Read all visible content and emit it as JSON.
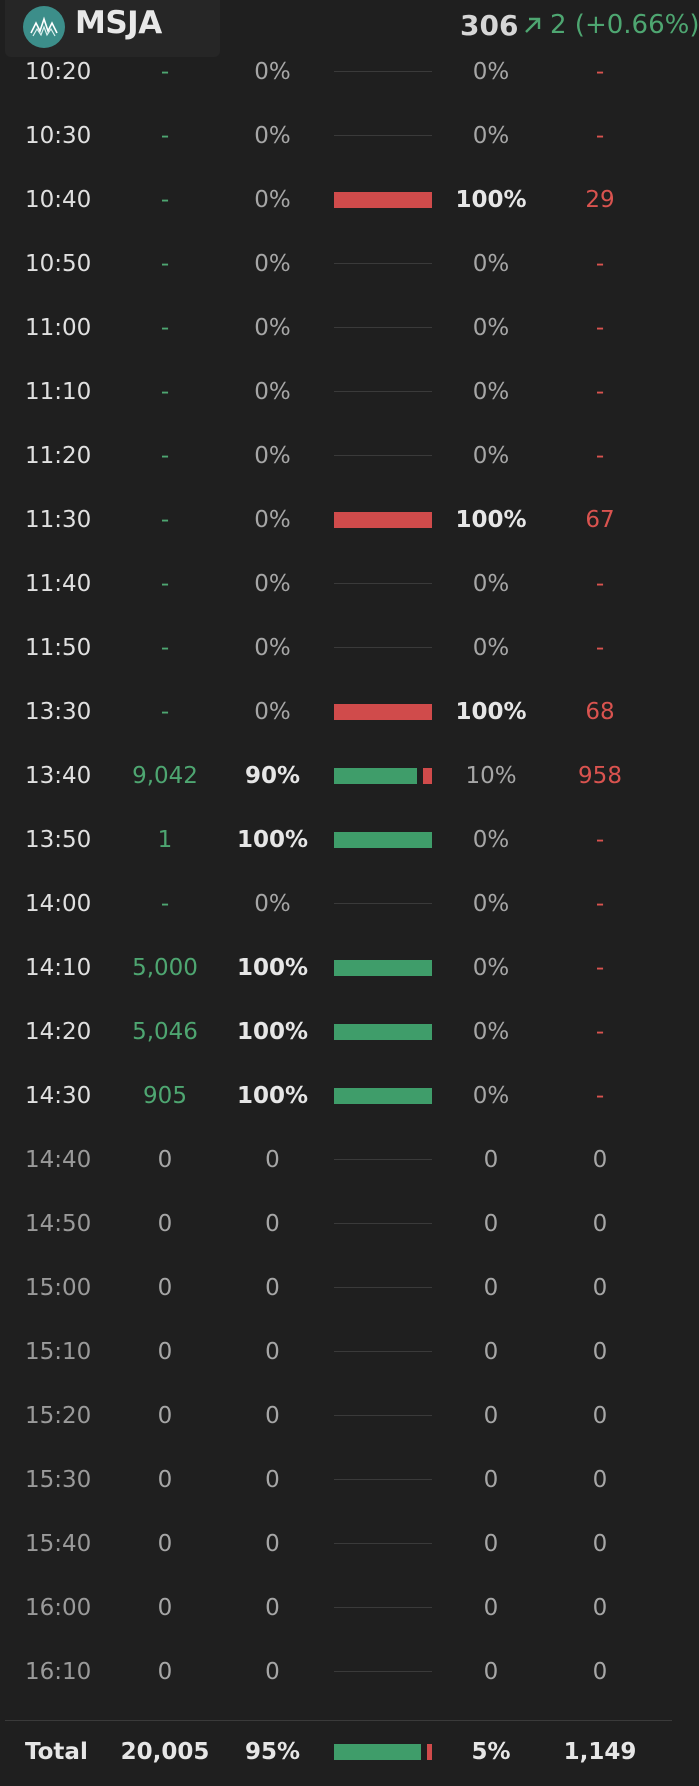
{
  "header": {
    "ticker": "MSJA",
    "price": "306",
    "change": "2 (+0.66%)",
    "icons": {
      "logo": "msja-logo-icon",
      "trend": "arrow-up-right-icon"
    },
    "colors": {
      "up": "#4ea671",
      "down": "#d9534f",
      "logo": "#3c8e8a"
    }
  },
  "rows": [
    {
      "time": "10:20",
      "buy_volume": "-",
      "buy_pct": "0%",
      "sell_pct": "0%",
      "sell_volume": "-",
      "buy_ratio": 0,
      "sell_ratio": 0,
      "future": false
    },
    {
      "time": "10:30",
      "buy_volume": "-",
      "buy_pct": "0%",
      "sell_pct": "0%",
      "sell_volume": "-",
      "buy_ratio": 0,
      "sell_ratio": 0,
      "future": false
    },
    {
      "time": "10:40",
      "buy_volume": "-",
      "buy_pct": "0%",
      "sell_pct": "100%",
      "sell_volume": "29",
      "buy_ratio": 0,
      "sell_ratio": 1,
      "future": false
    },
    {
      "time": "10:50",
      "buy_volume": "-",
      "buy_pct": "0%",
      "sell_pct": "0%",
      "sell_volume": "-",
      "buy_ratio": 0,
      "sell_ratio": 0,
      "future": false
    },
    {
      "time": "11:00",
      "buy_volume": "-",
      "buy_pct": "0%",
      "sell_pct": "0%",
      "sell_volume": "-",
      "buy_ratio": 0,
      "sell_ratio": 0,
      "future": false
    },
    {
      "time": "11:10",
      "buy_volume": "-",
      "buy_pct": "0%",
      "sell_pct": "0%",
      "sell_volume": "-",
      "buy_ratio": 0,
      "sell_ratio": 0,
      "future": false
    },
    {
      "time": "11:20",
      "buy_volume": "-",
      "buy_pct": "0%",
      "sell_pct": "0%",
      "sell_volume": "-",
      "buy_ratio": 0,
      "sell_ratio": 0,
      "future": false
    },
    {
      "time": "11:30",
      "buy_volume": "-",
      "buy_pct": "0%",
      "sell_pct": "100%",
      "sell_volume": "67",
      "buy_ratio": 0,
      "sell_ratio": 1,
      "future": false
    },
    {
      "time": "11:40",
      "buy_volume": "-",
      "buy_pct": "0%",
      "sell_pct": "0%",
      "sell_volume": "-",
      "buy_ratio": 0,
      "sell_ratio": 0,
      "future": false
    },
    {
      "time": "11:50",
      "buy_volume": "-",
      "buy_pct": "0%",
      "sell_pct": "0%",
      "sell_volume": "-",
      "buy_ratio": 0,
      "sell_ratio": 0,
      "future": false
    },
    {
      "time": "13:30",
      "buy_volume": "-",
      "buy_pct": "0%",
      "sell_pct": "100%",
      "sell_volume": "68",
      "buy_ratio": 0,
      "sell_ratio": 1,
      "future": false
    },
    {
      "time": "13:40",
      "buy_volume": "9,042",
      "buy_pct": "90%",
      "sell_pct": "10%",
      "sell_volume": "958",
      "buy_ratio": 0.9,
      "sell_ratio": 0.1,
      "future": false
    },
    {
      "time": "13:50",
      "buy_volume": "1",
      "buy_pct": "100%",
      "sell_pct": "0%",
      "sell_volume": "-",
      "buy_ratio": 1,
      "sell_ratio": 0,
      "future": false
    },
    {
      "time": "14:00",
      "buy_volume": "-",
      "buy_pct": "0%",
      "sell_pct": "0%",
      "sell_volume": "-",
      "buy_ratio": 0,
      "sell_ratio": 0,
      "future": false
    },
    {
      "time": "14:10",
      "buy_volume": "5,000",
      "buy_pct": "100%",
      "sell_pct": "0%",
      "sell_volume": "-",
      "buy_ratio": 1,
      "sell_ratio": 0,
      "future": false
    },
    {
      "time": "14:20",
      "buy_volume": "5,046",
      "buy_pct": "100%",
      "sell_pct": "0%",
      "sell_volume": "-",
      "buy_ratio": 1,
      "sell_ratio": 0,
      "future": false
    },
    {
      "time": "14:30",
      "buy_volume": "905",
      "buy_pct": "100%",
      "sell_pct": "0%",
      "sell_volume": "-",
      "buy_ratio": 1,
      "sell_ratio": 0,
      "future": false
    },
    {
      "time": "14:40",
      "buy_volume": "0",
      "buy_pct": "0",
      "sell_pct": "0",
      "sell_volume": "0",
      "buy_ratio": 0,
      "sell_ratio": 0,
      "future": true
    },
    {
      "time": "14:50",
      "buy_volume": "0",
      "buy_pct": "0",
      "sell_pct": "0",
      "sell_volume": "0",
      "buy_ratio": 0,
      "sell_ratio": 0,
      "future": true
    },
    {
      "time": "15:00",
      "buy_volume": "0",
      "buy_pct": "0",
      "sell_pct": "0",
      "sell_volume": "0",
      "buy_ratio": 0,
      "sell_ratio": 0,
      "future": true
    },
    {
      "time": "15:10",
      "buy_volume": "0",
      "buy_pct": "0",
      "sell_pct": "0",
      "sell_volume": "0",
      "buy_ratio": 0,
      "sell_ratio": 0,
      "future": true
    },
    {
      "time": "15:20",
      "buy_volume": "0",
      "buy_pct": "0",
      "sell_pct": "0",
      "sell_volume": "0",
      "buy_ratio": 0,
      "sell_ratio": 0,
      "future": true
    },
    {
      "time": "15:30",
      "buy_volume": "0",
      "buy_pct": "0",
      "sell_pct": "0",
      "sell_volume": "0",
      "buy_ratio": 0,
      "sell_ratio": 0,
      "future": true
    },
    {
      "time": "15:40",
      "buy_volume": "0",
      "buy_pct": "0",
      "sell_pct": "0",
      "sell_volume": "0",
      "buy_ratio": 0,
      "sell_ratio": 0,
      "future": true
    },
    {
      "time": "16:00",
      "buy_volume": "0",
      "buy_pct": "0",
      "sell_pct": "0",
      "sell_volume": "0",
      "buy_ratio": 0,
      "sell_ratio": 0,
      "future": true
    },
    {
      "time": "16:10",
      "buy_volume": "0",
      "buy_pct": "0",
      "sell_pct": "0",
      "sell_volume": "0",
      "buy_ratio": 0,
      "sell_ratio": 0,
      "future": true
    }
  ],
  "total": {
    "label": "Total",
    "buy_volume": "20,005",
    "buy_pct": "95%",
    "sell_pct": "5%",
    "sell_volume": "1,149",
    "buy_ratio": 0.95,
    "sell_ratio": 0.05
  }
}
